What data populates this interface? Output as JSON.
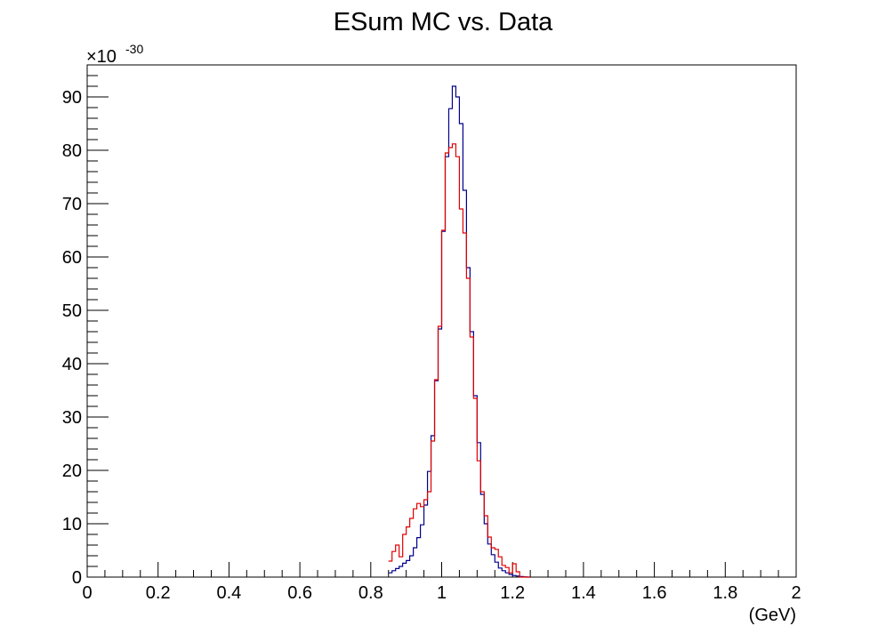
{
  "chart_data": {
    "type": "histogram",
    "title": "ESum MC vs. Data",
    "xlabel": "(GeV)",
    "ylabel": "",
    "y_exponent_label": "×10",
    "y_exponent_power": "-30",
    "xlim": [
      0,
      2
    ],
    "ylim": [
      0,
      96
    ],
    "x_ticks": [
      0,
      0.2,
      0.4,
      0.6,
      0.8,
      1,
      1.2,
      1.4,
      1.6,
      1.8,
      2
    ],
    "x_tick_labels": [
      "0",
      "0.2",
      "0.4",
      "0.6",
      "0.8",
      "1",
      "1.2",
      "1.4",
      "1.6",
      "1.8",
      "2"
    ],
    "y_ticks": [
      0,
      10,
      20,
      30,
      40,
      50,
      60,
      70,
      80,
      90
    ],
    "y_tick_labels": [
      "0",
      "10",
      "20",
      "30",
      "40",
      "50",
      "60",
      "70",
      "80",
      "90"
    ],
    "bin_width": 0.01,
    "bin_start": 0.85,
    "series": [
      {
        "color": "#00008b",
        "values": [
          0.8,
          1.2,
          1.6,
          2.0,
          2.6,
          3.1,
          4.0,
          5.5,
          7.4,
          9.8,
          13.5,
          19.8,
          26.5,
          36.8,
          46.5,
          64.8,
          78.8,
          87.8,
          92.0,
          90.0,
          85.0,
          72.5,
          58.0,
          46.0,
          34.0,
          25.2,
          15.5,
          10.0,
          6.2,
          4.2,
          2.8,
          1.7,
          1.2,
          0.8,
          0.5,
          0.3,
          0.2,
          0.1,
          0.05,
          0.0
        ]
      },
      {
        "color": "#e00000",
        "values": [
          3.0,
          4.8,
          6.0,
          3.8,
          8.0,
          9.4,
          11.0,
          12.8,
          13.8,
          13.2,
          14.5,
          16.0,
          25.5,
          37.0,
          47.0,
          65.0,
          79.5,
          80.5,
          81.2,
          78.8,
          69.0,
          64.5,
          56.0,
          45.0,
          33.5,
          21.8,
          16.0,
          11.5,
          7.5,
          5.5,
          5.2,
          3.8,
          2.2,
          1.8,
          0.8,
          2.5,
          1.0,
          0.0,
          0.0,
          0.0
        ]
      }
    ]
  }
}
